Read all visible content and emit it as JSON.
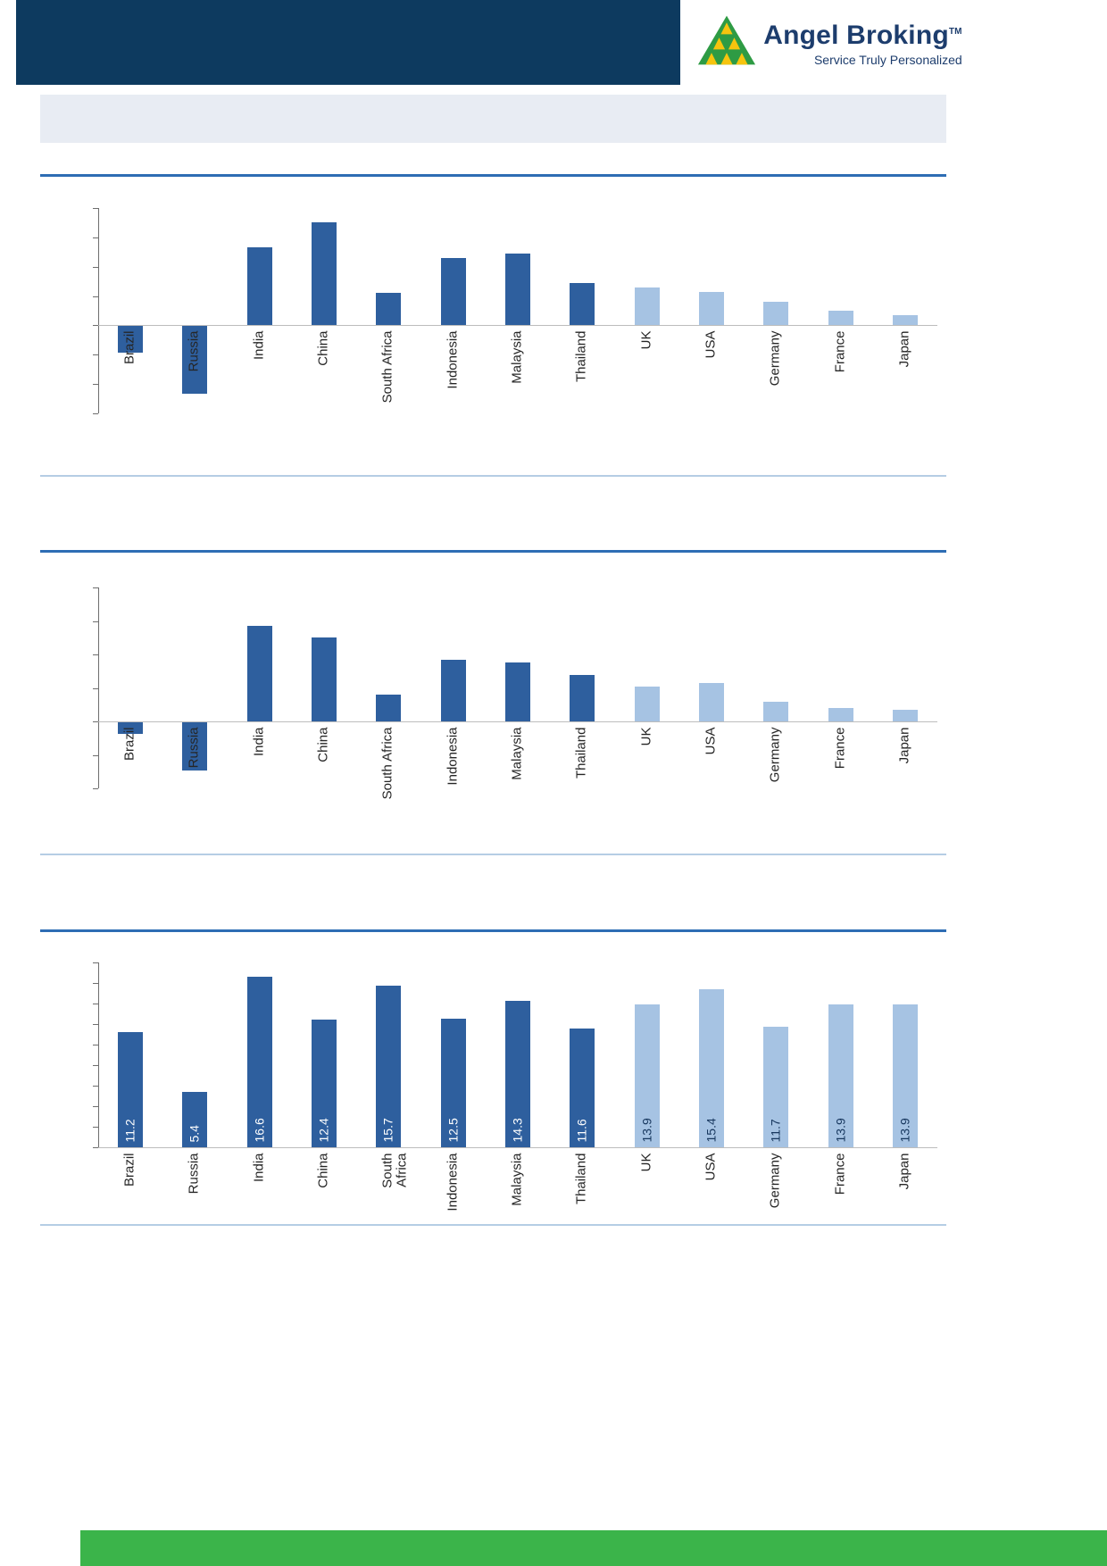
{
  "header": {
    "brand": "Angel Broking",
    "trademark": "TM",
    "tagline": "Service Truly Personalized"
  },
  "banner": {
    "text": ""
  },
  "colors": {
    "header_navy": "#0d3a5f",
    "brand_text": "#1d3d6d",
    "emerging_bar": "#2e5f9e",
    "developed_bar": "#a6c3e3",
    "section_rule": "#2e6db4",
    "thin_rule": "#b5cde4",
    "footer_green": "#3bb44a",
    "value_label_on_dark": "#ffffff",
    "value_label_on_light": "#17375e"
  },
  "chart_data": [
    {
      "type": "bar",
      "title": "",
      "categories": [
        "Brazil",
        "Russia",
        "India",
        "China",
        "South Africa",
        "Indonesia",
        "Malaysia",
        "Thailand",
        "UK",
        "USA",
        "Germany",
        "France",
        "Japan"
      ],
      "values": [
        -1.8,
        -4.6,
        5.3,
        7.0,
        2.2,
        4.6,
        4.9,
        2.9,
        2.6,
        2.3,
        1.6,
        1.0,
        0.7
      ],
      "ylim": [
        -6,
        8
      ],
      "tick_step": 2,
      "developed_from_index": 8,
      "grid": false,
      "legend": false
    },
    {
      "type": "bar",
      "title": "",
      "categories": [
        "Brazil",
        "Russia",
        "India",
        "China",
        "South Africa",
        "Indonesia",
        "Malaysia",
        "Thailand",
        "UK",
        "USA",
        "Germany",
        "France",
        "Japan"
      ],
      "values": [
        -0.7,
        -2.9,
        5.7,
        5.0,
        1.6,
        3.7,
        3.5,
        2.8,
        2.1,
        2.3,
        1.2,
        0.8,
        0.7
      ],
      "ylim": [
        -4,
        8
      ],
      "tick_step": 2,
      "developed_from_index": 8,
      "grid": false,
      "legend": false
    },
    {
      "type": "bar",
      "title": "",
      "categories": [
        "Brazil",
        "Russia",
        "India",
        "China",
        "South Africa",
        "Indonesia",
        "Malaysia",
        "Thailand",
        "UK",
        "USA",
        "Germany",
        "France",
        "Japan"
      ],
      "values": [
        11.2,
        5.4,
        16.6,
        12.4,
        15.7,
        12.5,
        14.3,
        11.6,
        13.9,
        15.4,
        11.7,
        13.9,
        13.9
      ],
      "value_labels": [
        "11.2",
        "5.4",
        "16.6",
        "12.4",
        "15.7",
        "12.5",
        "14.3",
        "11.6",
        "13.9",
        "15.4",
        "11.7",
        "13.9",
        "13.9"
      ],
      "ylim": [
        0,
        18
      ],
      "tick_step": 2,
      "developed_from_index": 8,
      "grid": false,
      "legend": false
    }
  ]
}
